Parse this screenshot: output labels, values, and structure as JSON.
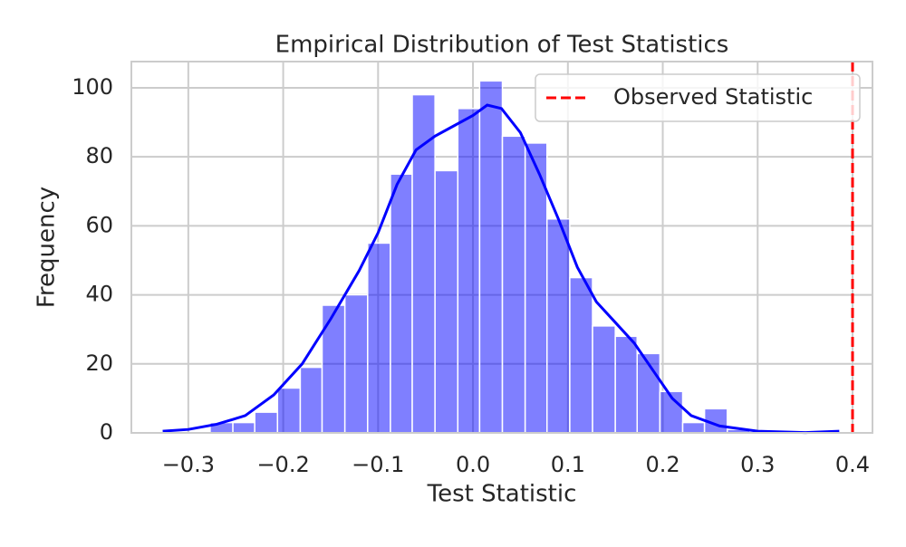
{
  "chart_data": {
    "type": "histogram",
    "title": "Empirical Distribution of Test Statistics",
    "x_label": "Test Statistic",
    "y_label": "Frequency",
    "bins": [
      -0.277,
      -0.253,
      -0.23,
      -0.206,
      -0.182,
      -0.159,
      -0.135,
      -0.111,
      -0.087,
      -0.064,
      -0.04,
      -0.016,
      0.007,
      0.031,
      0.055,
      0.078,
      0.102,
      0.126,
      0.15,
      0.173,
      0.197,
      0.221,
      0.244,
      0.268,
      0.292
    ],
    "counts": [
      3,
      3,
      6,
      13,
      19,
      37,
      40,
      55,
      75,
      98,
      76,
      94,
      102,
      86,
      84,
      62,
      45,
      31,
      28,
      23,
      12,
      3,
      7,
      1
    ],
    "color": "#0000ff",
    "bar_alpha": 0.5,
    "kde": {
      "color": "#0000ff",
      "x": [
        -0.327,
        -0.3,
        -0.27,
        -0.24,
        -0.21,
        -0.18,
        -0.15,
        -0.12,
        -0.1,
        -0.08,
        -0.06,
        -0.04,
        -0.02,
        0.0,
        0.015,
        0.03,
        0.05,
        0.07,
        0.09,
        0.11,
        0.13,
        0.15,
        0.17,
        0.19,
        0.21,
        0.23,
        0.26,
        0.3,
        0.35,
        0.386
      ],
      "y": [
        0.5,
        1,
        2.5,
        5,
        11,
        20,
        33,
        47,
        58,
        72,
        82,
        86,
        89,
        92,
        95,
        94,
        87,
        75,
        62,
        48,
        38,
        32,
        26,
        18,
        10,
        5,
        2,
        0.5,
        0.1,
        0.5
      ]
    },
    "reference_line": {
      "name": "Observed Statistic",
      "x": 0.4,
      "color": "#ff0000"
    },
    "legend": "upper right",
    "xlim": [
      -0.36,
      0.421
    ],
    "ylim": [
      0,
      107.6
    ],
    "xticks": [
      {
        "value": -0.3,
        "label": "−0.3"
      },
      {
        "value": -0.2,
        "label": "−0.2"
      },
      {
        "value": -0.1,
        "label": "−0.1"
      },
      {
        "value": 0,
        "label": "0.0"
      },
      0.1,
      0.2,
      0.3,
      0.4
    ],
    "yticks": [
      0,
      20,
      40,
      60,
      80,
      100
    ],
    "grid": true
  }
}
